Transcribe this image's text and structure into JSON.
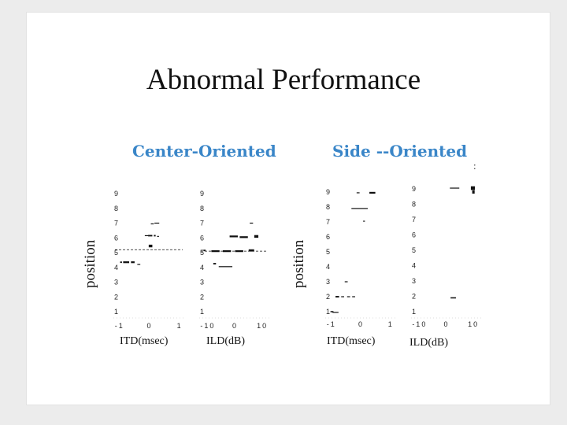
{
  "title": "Abnormal Performance",
  "groups": {
    "center_label": "Center-Oriented",
    "side_label": "Side --Oriented"
  },
  "extra_mark": ":",
  "y_label": "position",
  "colors": {
    "accent": "#3a86c8",
    "marker": "#111111",
    "background": "#ececec",
    "slide": "#ffffff"
  },
  "chart_data": [
    {
      "type": "scatter",
      "xlabel": "ITD(msec)",
      "x_ticks": [
        "-1",
        "0",
        "1"
      ],
      "x_tick_values": [
        -1,
        0,
        1
      ],
      "xlim": [
        -1.1,
        1.1
      ],
      "y_ticks": [
        "9",
        "8",
        "7",
        "6",
        "5",
        "4",
        "3",
        "2",
        "1"
      ],
      "ylim": [
        1,
        9
      ],
      "reference_y": 5.2,
      "points": [
        {
          "x": 0.09,
          "y": 6.95,
          "w": 0.1,
          "h": 0.06
        },
        {
          "x": 0.24,
          "y": 7.0,
          "w": 0.16,
          "h": 0.06
        },
        {
          "x": -0.1,
          "y": 6.15,
          "w": 0.12,
          "h": 0.05
        },
        {
          "x": 0.02,
          "y": 6.15,
          "w": 0.14,
          "h": 0.1
        },
        {
          "x": 0.17,
          "y": 6.15,
          "w": 0.06,
          "h": 0.1
        },
        {
          "x": 0.28,
          "y": 6.1,
          "w": 0.06,
          "h": 0.05
        },
        {
          "x": 0.03,
          "y": 5.45,
          "w": 0.12,
          "h": 0.18
        },
        {
          "x": -0.95,
          "y": 4.35,
          "w": 0.06,
          "h": 0.1
        },
        {
          "x": -0.78,
          "y": 4.35,
          "w": 0.2,
          "h": 0.12
        },
        {
          "x": -0.56,
          "y": 4.35,
          "w": 0.12,
          "h": 0.12
        },
        {
          "x": -0.36,
          "y": 4.2,
          "w": 0.1,
          "h": 0.05
        }
      ]
    },
    {
      "type": "scatter",
      "xlabel": "ILD(dB)",
      "x_ticks": [
        "-10",
        "0",
        "10"
      ],
      "x_tick_values": [
        -10,
        0,
        10
      ],
      "xlim": [
        -12,
        12
      ],
      "y_ticks": [
        "9",
        "8",
        "7",
        "6",
        "5",
        "4",
        "3",
        "2",
        "1"
      ],
      "ylim": [
        1,
        9
      ],
      "reference_y": 5.1,
      "points": [
        {
          "x": 6.0,
          "y": 7.0,
          "w": 1.2,
          "h": 0.05
        },
        {
          "x": -0.5,
          "y": 6.1,
          "w": 3.0,
          "h": 0.12
        },
        {
          "x": 3.2,
          "y": 6.05,
          "w": 3.0,
          "h": 0.12
        },
        {
          "x": 7.8,
          "y": 6.1,
          "w": 1.5,
          "h": 0.18
        },
        {
          "x": -11.2,
          "y": 5.15,
          "w": 0.8,
          "h": 0.1
        },
        {
          "x": -7.2,
          "y": 5.1,
          "w": 3.0,
          "h": 0.12
        },
        {
          "x": -3.0,
          "y": 5.1,
          "w": 3.0,
          "h": 0.12
        },
        {
          "x": 1.5,
          "y": 5.1,
          "w": 3.0,
          "h": 0.12
        },
        {
          "x": 6.0,
          "y": 5.15,
          "w": 2.0,
          "h": 0.15
        },
        {
          "x": -7.5,
          "y": 4.25,
          "w": 1.0,
          "h": 0.1
        },
        {
          "x": -3.5,
          "y": 4.05,
          "w": 5.0,
          "h": 0.05
        }
      ]
    },
    {
      "type": "scatter",
      "xlabel": "ITD(msec)",
      "x_ticks": [
        "-1",
        "0",
        "1"
      ],
      "x_tick_values": [
        -1,
        0,
        1
      ],
      "xlim": [
        -1.1,
        1.1
      ],
      "y_ticks": [
        "9",
        "8",
        "7",
        "6",
        "5",
        "4",
        "3",
        "2",
        "1"
      ],
      "ylim": [
        1,
        9
      ],
      "points": [
        {
          "x": -0.1,
          "y": 8.95,
          "w": 0.1,
          "h": 0.06
        },
        {
          "x": 0.38,
          "y": 8.95,
          "w": 0.2,
          "h": 0.12
        },
        {
          "x": -0.05,
          "y": 7.9,
          "w": 0.55,
          "h": 0.04
        },
        {
          "x": 0.1,
          "y": 7.05,
          "w": 0.06,
          "h": 0.06
        },
        {
          "x": -0.5,
          "y": 3.0,
          "w": 0.1,
          "h": 0.06
        },
        {
          "x": -0.8,
          "y": 2.0,
          "w": 0.12,
          "h": 0.1
        },
        {
          "x": -0.62,
          "y": 2.0,
          "w": 0.1,
          "h": 0.06
        },
        {
          "x": -0.42,
          "y": 2.0,
          "w": 0.1,
          "h": 0.04
        },
        {
          "x": -0.25,
          "y": 2.0,
          "w": 0.1,
          "h": 0.04
        },
        {
          "x": -0.98,
          "y": 1.0,
          "w": 0.1,
          "h": 0.08
        },
        {
          "x": -0.86,
          "y": 0.95,
          "w": 0.2,
          "h": 0.06
        }
      ]
    },
    {
      "type": "scatter",
      "xlabel": "ILD(dB)",
      "x_ticks": [
        "-10",
        "0",
        "10"
      ],
      "x_tick_values": [
        -10,
        0,
        10
      ],
      "xlim": [
        -12,
        12
      ],
      "y_ticks": [
        "9",
        "8",
        "7",
        "6",
        "5",
        "4",
        "3",
        "2",
        "1"
      ],
      "ylim": [
        1,
        9
      ],
      "points": [
        {
          "x": 3.0,
          "y": 9.05,
          "w": 3.5,
          "h": 0.05
        },
        {
          "x": 9.8,
          "y": 9.05,
          "w": 1.5,
          "h": 0.24
        },
        {
          "x": 10.0,
          "y": 8.8,
          "w": 0.9,
          "h": 0.22
        },
        {
          "x": 2.5,
          "y": 1.9,
          "w": 2.0,
          "h": 0.08
        }
      ]
    }
  ]
}
